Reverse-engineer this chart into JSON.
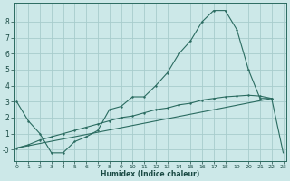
{
  "xlabel": "Humidex (Indice chaleur)",
  "bg_color": "#cce8e8",
  "plot_bg_color": "#cce8e8",
  "grid_color": "#a8cccc",
  "line_color": "#2a6b60",
  "xlim": [
    0,
    23
  ],
  "ylim": [
    -0.7,
    9.2
  ],
  "xticks": [
    0,
    1,
    2,
    3,
    4,
    5,
    6,
    7,
    8,
    9,
    10,
    11,
    12,
    13,
    14,
    15,
    16,
    17,
    18,
    19,
    20,
    21,
    22,
    23
  ],
  "yticks": [
    0,
    1,
    2,
    3,
    4,
    5,
    6,
    7,
    8
  ],
  "ytick_labels": [
    "-0",
    "1",
    "2",
    "3",
    "4",
    "5",
    "6",
    "7",
    "8"
  ],
  "line1_x": [
    0,
    1,
    2,
    3,
    4,
    5,
    6,
    7,
    8,
    9,
    10,
    11,
    12,
    13,
    14,
    15,
    16,
    17,
    18,
    19,
    20,
    21,
    22
  ],
  "line1_y": [
    3.0,
    1.8,
    1.0,
    -0.2,
    -0.2,
    0.5,
    0.8,
    1.2,
    2.5,
    2.7,
    3.3,
    3.3,
    4.0,
    4.8,
    6.0,
    6.8,
    8.0,
    8.7,
    8.7,
    7.5,
    5.0,
    3.2,
    3.2
  ],
  "line2_x": [
    0,
    1,
    2,
    3,
    4,
    5,
    6,
    7,
    8,
    9,
    10,
    11,
    12,
    13,
    14,
    15,
    16,
    17,
    18,
    19,
    20,
    21,
    22
  ],
  "line2_y": [
    0.1,
    0.3,
    0.6,
    0.8,
    1.0,
    1.2,
    1.4,
    1.6,
    1.8,
    2.0,
    2.1,
    2.3,
    2.5,
    2.6,
    2.8,
    2.9,
    3.1,
    3.2,
    3.3,
    3.35,
    3.4,
    3.35,
    3.2
  ],
  "line3_x": [
    0,
    22
  ],
  "line3_y": [
    0.1,
    3.2
  ],
  "line4_x": [
    22,
    23
  ],
  "line4_y": [
    3.2,
    -0.2
  ],
  "line5_x": [
    21,
    22,
    23
  ],
  "line5_y": [
    3.2,
    3.2,
    -0.2
  ]
}
